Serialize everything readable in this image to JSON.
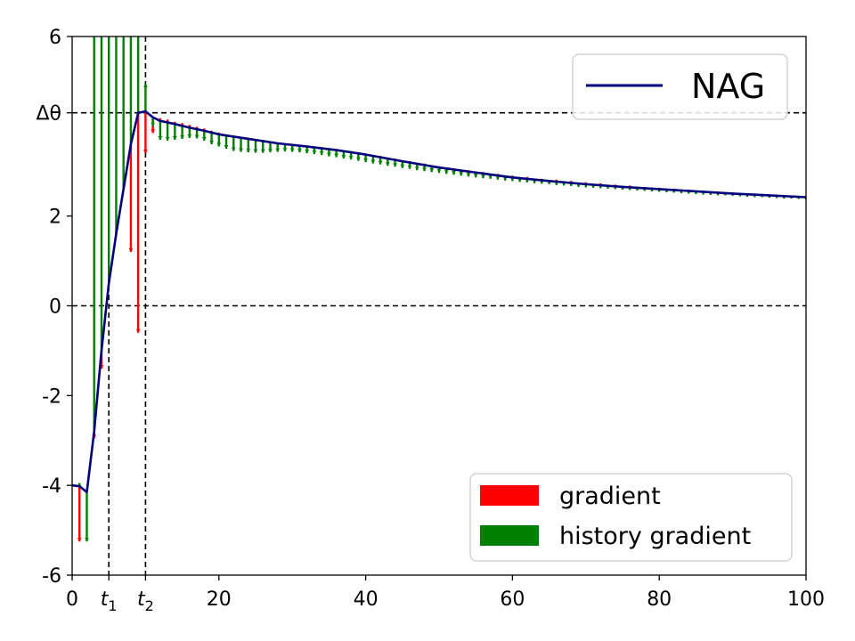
{
  "chart_data": {
    "type": "line",
    "title": "",
    "xlabel": "",
    "ylabel": "",
    "xlim": [
      0,
      100
    ],
    "ylim": [
      -6,
      6
    ],
    "x_ticks": [
      {
        "value": 0,
        "label": "0"
      },
      {
        "value": 5,
        "label": "t",
        "sub": "1"
      },
      {
        "value": 10,
        "label": "t",
        "sub": "2"
      },
      {
        "value": 20,
        "label": "20"
      },
      {
        "value": 40,
        "label": "40"
      },
      {
        "value": 60,
        "label": "60"
      },
      {
        "value": 80,
        "label": "80"
      },
      {
        "value": 100,
        "label": "100"
      }
    ],
    "y_ticks": [
      {
        "value": -6,
        "label": "-6"
      },
      {
        "value": -4,
        "label": "-4"
      },
      {
        "value": -2,
        "label": "-2"
      },
      {
        "value": 0,
        "label": "0"
      },
      {
        "value": 2,
        "label": "2"
      },
      {
        "value": 4.3,
        "label": "Δθ"
      },
      {
        "value": 6,
        "label": "6"
      }
    ],
    "reference_lines": {
      "horizontal": [
        0,
        4.3
      ],
      "vertical": [
        5,
        10
      ],
      "style": "dashed",
      "color": "#000000"
    },
    "series": [
      {
        "name": "NAG",
        "color": "#00007f",
        "x": [
          0,
          1,
          2,
          3,
          4,
          5,
          6,
          7,
          8,
          9,
          10,
          11,
          12,
          14,
          16,
          18,
          20,
          24,
          28,
          32,
          36,
          40,
          45,
          50,
          55,
          60,
          65,
          70,
          75,
          80,
          85,
          90,
          95,
          100
        ],
        "y": [
          -4.0,
          -4.02,
          -4.15,
          -2.8,
          -1.0,
          0.5,
          1.6,
          2.6,
          3.6,
          4.3,
          4.33,
          4.2,
          4.12,
          4.05,
          3.97,
          3.9,
          3.82,
          3.72,
          3.62,
          3.55,
          3.47,
          3.37,
          3.22,
          3.08,
          2.97,
          2.86,
          2.78,
          2.71,
          2.65,
          2.6,
          2.55,
          2.5,
          2.46,
          2.42
        ]
      }
    ],
    "arrows": {
      "gradient": {
        "name": "gradient",
        "color": "#ff0000",
        "x": [
          1,
          3,
          4,
          5,
          7,
          8,
          9,
          10,
          11,
          12,
          13,
          14,
          15,
          16,
          17,
          18,
          19,
          20,
          21,
          22,
          23,
          24,
          25,
          26,
          27,
          28,
          30,
          32,
          34,
          36,
          38,
          40,
          42,
          44,
          46,
          48,
          50,
          52,
          54,
          56,
          58,
          60,
          62,
          64,
          66,
          68,
          70,
          72,
          74,
          76,
          78,
          80,
          82,
          84,
          86,
          88,
          90,
          92,
          94,
          96,
          98,
          100
        ],
        "y_end": [
          -5.25,
          -2.95,
          -1.4,
          0.5,
          2.6,
          1.2,
          -0.6,
          3.4,
          3.85,
          4.18,
          4.15,
          4.1,
          4.07,
          4.03,
          3.99,
          3.95,
          3.9,
          3.86,
          3.82,
          3.79,
          3.76,
          3.74,
          3.7,
          3.68,
          3.66,
          3.63,
          3.59,
          3.56,
          3.53,
          3.49,
          3.45,
          3.39,
          3.34,
          3.28,
          3.22,
          3.17,
          3.11,
          3.06,
          3.02,
          2.98,
          2.94,
          2.9,
          2.87,
          2.83,
          2.81,
          2.78,
          2.75,
          2.73,
          2.7,
          2.68,
          2.65,
          2.63,
          2.61,
          2.59,
          2.57,
          2.55,
          2.53,
          2.51,
          2.49,
          2.47,
          2.45,
          2.43
        ]
      },
      "history_gradient": {
        "name": "history gradient",
        "color": "#008000",
        "x": [
          1,
          2,
          3,
          4,
          5,
          6,
          7,
          8,
          9,
          10,
          11,
          12,
          13,
          14,
          15,
          16,
          17,
          18,
          19,
          20,
          21,
          22,
          23,
          24,
          25,
          26,
          27,
          28,
          29,
          30,
          31,
          32,
          33,
          34,
          35,
          36,
          37,
          38,
          39,
          40,
          41,
          42,
          43,
          44,
          45,
          46,
          47,
          48,
          49,
          50,
          51,
          52,
          53,
          54,
          55,
          56,
          57,
          58,
          59,
          60,
          61,
          62,
          63,
          64,
          65,
          66,
          67,
          68,
          69,
          70,
          71,
          72,
          73,
          74,
          75,
          76,
          77,
          78,
          79,
          80,
          81,
          82,
          83,
          84,
          85,
          86,
          87,
          88,
          89,
          90,
          91,
          92,
          93,
          94,
          95,
          96,
          97,
          98,
          99,
          100
        ],
        "y_end": [
          -3.95,
          -5.25,
          6,
          6,
          6,
          6,
          6,
          6,
          6,
          4.95,
          4.0,
          3.7,
          3.68,
          3.7,
          3.72,
          3.74,
          3.73,
          3.68,
          3.6,
          3.55,
          3.5,
          3.45,
          3.43,
          3.42,
          3.41,
          3.41,
          3.42,
          3.43,
          3.44,
          3.43,
          3.42,
          3.4,
          3.38,
          3.36,
          3.33,
          3.31,
          3.28,
          3.26,
          3.23,
          3.2,
          3.17,
          3.15,
          3.12,
          3.1,
          3.07,
          3.05,
          3.02,
          3.0,
          2.98,
          2.96,
          2.94,
          2.92,
          2.9,
          2.88,
          2.86,
          2.84,
          2.83,
          2.81,
          2.79,
          2.78,
          2.76,
          2.75,
          2.73,
          2.72,
          2.71,
          2.69,
          2.68,
          2.67,
          2.65,
          2.64,
          2.63,
          2.62,
          2.61,
          2.6,
          2.59,
          2.58,
          2.57,
          2.56,
          2.55,
          2.54,
          2.53,
          2.52,
          2.51,
          2.5,
          2.49,
          2.48,
          2.47,
          2.46,
          2.46,
          2.45,
          2.44,
          2.43,
          2.42,
          2.42,
          2.41,
          2.4,
          2.39,
          2.39,
          2.38,
          2.37
        ]
      }
    },
    "legend_top": {
      "placement": "top-right",
      "entries": [
        {
          "label": "NAG",
          "color": "#00007f",
          "marker": "line"
        }
      ]
    },
    "legend_bottom": {
      "placement": "bottom-right",
      "entries": [
        {
          "label": "gradient",
          "color": "#ff0000",
          "marker": "patch"
        },
        {
          "label": "history gradient",
          "color": "#008000",
          "marker": "patch"
        }
      ]
    },
    "grid": false
  }
}
